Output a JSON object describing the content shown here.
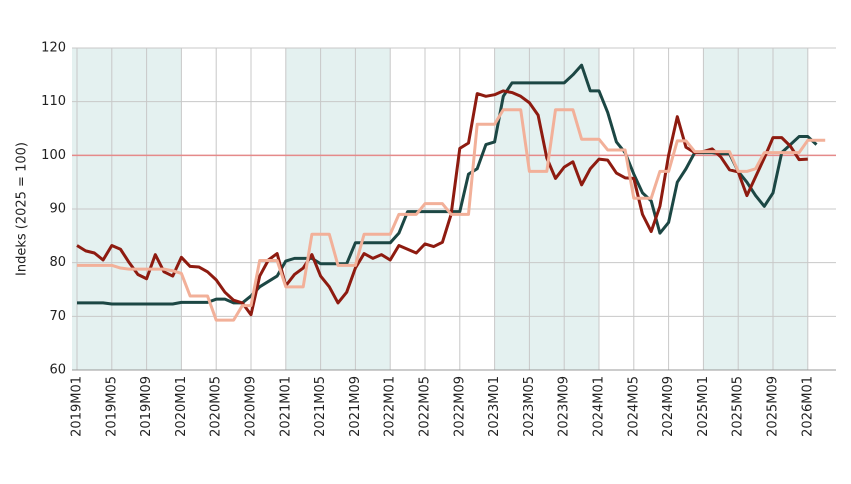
{
  "chart_data": {
    "type": "line",
    "y_label": "Indeks (2025 = 100)",
    "categories": [
      "2019M01",
      null,
      null,
      null,
      "2019M05",
      null,
      null,
      null,
      "2019M09",
      null,
      null,
      null,
      "2020M01",
      null,
      null,
      null,
      "2020M05",
      null,
      null,
      null,
      "2020M09",
      null,
      null,
      null,
      "2021M01",
      null,
      null,
      null,
      "2021M05",
      null,
      null,
      null,
      "2021M09",
      null,
      null,
      null,
      "2022M01",
      null,
      null,
      null,
      "2022M05",
      null,
      null,
      null,
      "2022M09",
      null,
      null,
      null,
      "2023M01",
      null,
      null,
      null,
      "2023M05",
      null,
      null,
      null,
      "2023M09",
      null,
      null,
      null,
      "2024M01",
      null,
      null,
      null,
      "2024M05",
      null,
      null,
      null,
      "2024M09",
      null,
      null,
      null,
      "2025M01",
      null,
      null,
      null,
      "2025M05",
      null,
      null,
      null,
      "2025M09",
      null,
      null,
      null,
      "2026M01",
      null,
      null
    ],
    "series": [
      {
        "color": "#1c4744",
        "values": [
          72.5,
          72.5,
          72.5,
          72.5,
          72.3,
          72.3,
          72.3,
          72.3,
          72.3,
          72.3,
          72.3,
          72.3,
          72.6,
          72.6,
          72.6,
          72.6,
          73.2,
          73.2,
          72.5,
          72.5,
          73.8,
          75.5,
          76.5,
          77.5,
          80.3,
          80.8,
          80.8,
          80.8,
          79.8,
          79.8,
          79.8,
          79.8,
          83.7,
          83.7,
          83.7,
          83.7,
          83.7,
          85.5,
          89.5,
          89.5,
          89.5,
          89.5,
          89.5,
          89.5,
          89.5,
          96.5,
          97.5,
          102,
          102.5,
          111,
          113.5,
          113.5,
          113.5,
          113.5,
          113.5,
          113.5,
          113.5,
          115,
          116.8,
          112,
          112,
          108,
          102.5,
          100.5,
          96.5,
          93,
          91.5,
          85.5,
          87.5,
          95,
          97.5,
          100.5,
          100.5,
          100.5,
          100.3,
          100.3,
          97,
          95,
          92.5,
          90.5,
          93,
          100.5,
          102,
          103.5,
          103.5,
          102,
          null
        ]
      },
      {
        "color": "#8e1b10",
        "values": [
          83.2,
          82.2,
          81.8,
          80.5,
          83.2,
          82.5,
          80,
          77.8,
          77,
          81.5,
          78.3,
          77.5,
          81,
          79.3,
          79.2,
          78.3,
          76.8,
          74.5,
          73,
          72.5,
          70.3,
          77.5,
          80.5,
          81.7,
          75.7,
          77.8,
          79,
          81.5,
          77.5,
          75.5,
          72.5,
          74.5,
          79,
          81.7,
          80.8,
          81.5,
          80.5,
          83.2,
          82.5,
          81.8,
          83.5,
          83,
          83.8,
          89,
          101.3,
          102.3,
          111.5,
          111,
          111.3,
          112,
          111.7,
          111,
          109.8,
          107.5,
          99.5,
          95.7,
          97.8,
          98.8,
          94.5,
          97.5,
          99.3,
          99.1,
          96.7,
          95.8,
          95.7,
          89,
          85.8,
          90.5,
          100,
          107.2,
          101.5,
          100.5,
          100.7,
          101.2,
          99.7,
          97.3,
          96.9,
          92.5,
          96,
          99.5,
          103.3,
          103.3,
          101.7,
          99.2,
          99.3,
          null,
          null
        ]
      },
      {
        "color": "#f2b099",
        "values": [
          79.5,
          79.5,
          79.5,
          79.5,
          79.5,
          79,
          78.8,
          78.8,
          78.8,
          78.8,
          78.8,
          78.5,
          78,
          73.8,
          73.8,
          73.8,
          69.3,
          69.3,
          69.3,
          72,
          72,
          80.4,
          80.4,
          80.4,
          75.5,
          75.5,
          75.5,
          85.3,
          85.3,
          85.3,
          79.5,
          79.5,
          79.5,
          85.3,
          85.3,
          85.3,
          85.3,
          89,
          89,
          89,
          91,
          91,
          91,
          89,
          89,
          89,
          105.8,
          105.8,
          105.8,
          108.5,
          108.5,
          108.5,
          97,
          97,
          97,
          108.5,
          108.5,
          108.5,
          103,
          103,
          103,
          101,
          101,
          101,
          92,
          92,
          92,
          97,
          97,
          102.7,
          102.7,
          100.7,
          100.7,
          100.7,
          100.7,
          100.7,
          97,
          97,
          97.5,
          100.5,
          100.5,
          100.5,
          100.5,
          100.5,
          102.8,
          102.8,
          102.8
        ]
      }
    ],
    "reference_line": {
      "value": 100,
      "color": "#e58a8a"
    },
    "ylim": [
      60,
      120
    ],
    "yticks": [
      60,
      70,
      80,
      90,
      100,
      110,
      120
    ],
    "grid": true,
    "band_color": "#e4f1f0"
  }
}
